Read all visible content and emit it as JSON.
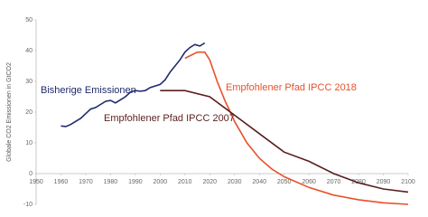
{
  "chart_data": {
    "type": "line",
    "y_label": "Globale CO2 Emissionen in GtCO2",
    "xlim": [
      1950,
      2100
    ],
    "xticks": [
      1950,
      1960,
      1970,
      1980,
      1990,
      2000,
      2010,
      2020,
      2030,
      2040,
      2050,
      2060,
      2070,
      2080,
      2090,
      2100
    ],
    "ylim": [
      -10,
      50
    ],
    "yticks": [
      -10,
      0,
      10,
      20,
      30,
      40,
      50
    ],
    "grid": false,
    "series": [
      {
        "name": "Bisherige Emissionen",
        "color": "#1f2a6b",
        "x": [
          1960,
          1962,
          1964,
          1966,
          1968,
          1970,
          1972,
          1974,
          1976,
          1978,
          1980,
          1982,
          1984,
          1986,
          1988,
          1990,
          1992,
          1994,
          1996,
          1998,
          2000,
          2002,
          2004,
          2006,
          2008,
          2010,
          2012,
          2014,
          2016,
          2018
        ],
        "values": [
          15.5,
          15.3,
          16,
          17,
          18,
          19.5,
          21,
          21.5,
          22.5,
          23.5,
          23.8,
          23,
          24,
          25,
          26.5,
          27,
          26.8,
          27,
          28,
          28.5,
          29,
          30.5,
          33,
          35,
          37,
          39.5,
          41,
          42,
          41.5,
          42.5
        ]
      },
      {
        "name": "Empfohlener Pfad IPCC 2018",
        "color": "#e8502a",
        "x": [
          2010,
          2015,
          2018,
          2020,
          2023,
          2026,
          2030,
          2035,
          2040,
          2045,
          2050,
          2060,
          2070,
          2080,
          2090,
          2100
        ],
        "values": [
          37.5,
          39.5,
          39.5,
          37,
          30,
          24,
          17,
          10,
          5,
          1.5,
          -1,
          -4.5,
          -7,
          -8.5,
          -9.5,
          -10
        ]
      },
      {
        "name": "Empfohlener Pfad IPCC 2007",
        "color": "#5a1f1f",
        "x": [
          2000,
          2010,
          2020,
          2030,
          2040,
          2050,
          2060,
          2070,
          2080,
          2090,
          2100
        ],
        "values": [
          27,
          27,
          25,
          19,
          13,
          7,
          4,
          0,
          -3,
          -5,
          -6
        ]
      }
    ]
  }
}
